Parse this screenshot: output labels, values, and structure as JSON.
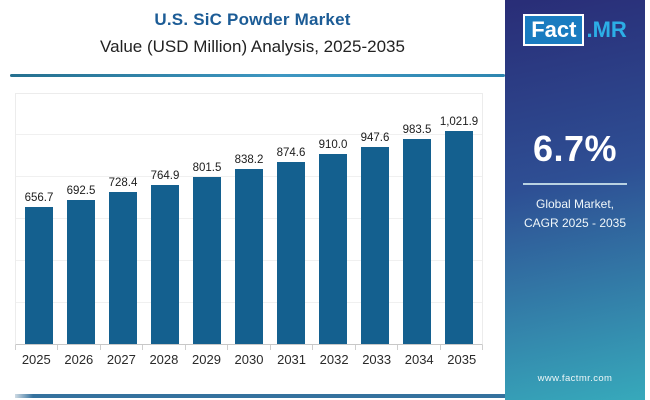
{
  "header": {
    "title": "U.S. SiC Powder Market",
    "subtitle": "Value (USD Million) Analysis, 2025-2035"
  },
  "logo": {
    "part1": "Fact",
    "part2": ".MR"
  },
  "sidebar": {
    "stat_value": "6.7%",
    "stat_caption_line1": "Global Market,",
    "stat_caption_line2": "CAGR 2025 - 2035",
    "website": "www.factmr.com"
  },
  "chart_data": {
    "type": "bar",
    "title": "U.S. SiC Powder Market",
    "subtitle": "Value (USD Million) Analysis, 2025-2035",
    "categories": [
      "2025",
      "2026",
      "2027",
      "2028",
      "2029",
      "2030",
      "2031",
      "2032",
      "2033",
      "2034",
      "2035"
    ],
    "values": [
      656.7,
      692.5,
      728.4,
      764.9,
      801.5,
      838.2,
      874.6,
      910.0,
      947.6,
      983.5,
      1021.9
    ],
    "value_labels": [
      "656.7",
      "692.5",
      "728.4",
      "764.9",
      "801.5",
      "838.2",
      "874.6",
      "910.0",
      "947.6",
      "983.5",
      "1,021.9"
    ],
    "xlabel": "",
    "ylabel": "",
    "ylim": [
      0,
      1200
    ],
    "gridlines": "horizontal every 200, no y tick labels",
    "legend": "none",
    "bar_color": "#14608f"
  },
  "colors": {
    "title_blue": "#1c5c96",
    "bar_blue": "#14608f",
    "header_underline": "#2e86b0",
    "bottom_bar": "#35729e",
    "sidebar_navy": "#292d77",
    "sidebar_teal": "#37a9bb",
    "logo_box_blue": "#1a7cc0",
    "logo_cyan": "#2caee6"
  }
}
